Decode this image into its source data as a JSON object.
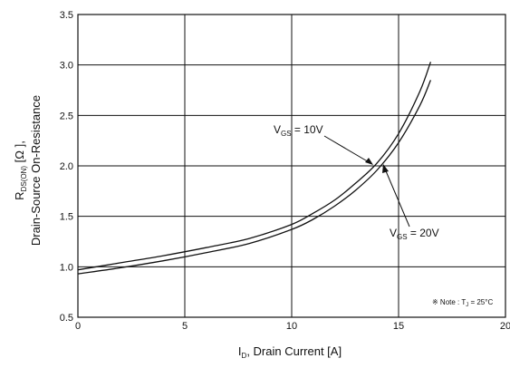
{
  "chart_data": {
    "type": "line",
    "xlabel_main": "I",
    "xlabel_sub": "D",
    "xlabel_rest": ", Drain Current [A]",
    "ylabel_line1_main": "R",
    "ylabel_line1_sub": "DS(ON)",
    "ylabel_line1_rest": " [Ω ],",
    "ylabel_line2": "Drain-Source On-Resistance",
    "xlim": [
      0,
      20
    ],
    "ylim": [
      0.5,
      3.5
    ],
    "x_ticks": [
      "0",
      "5",
      "10",
      "15",
      "20"
    ],
    "y_ticks": [
      "0.5",
      "1.0",
      "1.5",
      "2.0",
      "2.5",
      "3.0",
      "3.5"
    ],
    "grid": true,
    "series": [
      {
        "annotation_main": "V",
        "annotation_sub": "GS",
        "annotation_rest": " = 10V",
        "x": [
          0,
          2,
          4,
          6,
          8,
          10,
          11,
          12,
          13,
          14,
          15,
          16,
          16.5
        ],
        "y": [
          0.97,
          1.04,
          1.11,
          1.19,
          1.28,
          1.42,
          1.53,
          1.66,
          1.83,
          2.03,
          2.32,
          2.74,
          3.03
        ]
      },
      {
        "annotation_main": "V",
        "annotation_sub": "GS",
        "annotation_rest": " = 20V",
        "x": [
          0,
          2,
          4,
          6,
          8,
          10,
          11,
          12,
          13,
          14,
          15,
          16,
          16.5
        ],
        "y": [
          0.93,
          0.99,
          1.06,
          1.14,
          1.23,
          1.37,
          1.47,
          1.6,
          1.76,
          1.96,
          2.23,
          2.6,
          2.85
        ]
      }
    ],
    "note_main": "※ Note : T",
    "note_sub": "J",
    "note_rest": " = 25°C"
  }
}
